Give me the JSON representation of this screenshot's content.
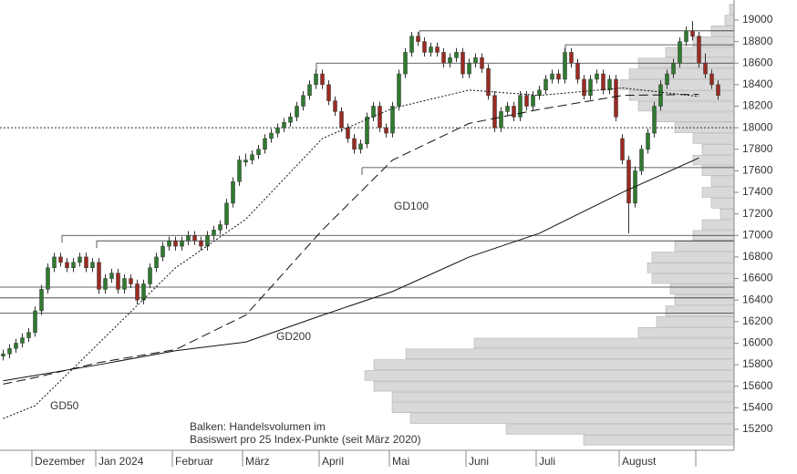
{
  "chart_data": {
    "type": "candlestick",
    "up_color": "#2f7a2f",
    "down_color": "#9b2a22",
    "ylim": [
      15005,
      19186
    ],
    "yticks": [
      15200,
      15400,
      15600,
      15800,
      16000,
      16200,
      16400,
      16600,
      16800,
      17000,
      17200,
      17400,
      17600,
      17800,
      18000,
      18200,
      18400,
      18600,
      18800,
      19000
    ],
    "months": [
      {
        "label": null,
        "gd50": 15300,
        "gd100": 15620,
        "gd200": 15650,
        "candles": [
          [
            15880,
            15940,
            15840,
            15900
          ],
          [
            15900,
            15990,
            15860,
            15950
          ],
          [
            15950,
            16040,
            15910,
            16000
          ],
          [
            16000,
            16090,
            15960,
            16050
          ],
          [
            16050,
            16140,
            16010,
            16100
          ]
        ]
      },
      {
        "label": "Dezember",
        "gd50": 15420,
        "gd100": 15680,
        "gd200": 15700,
        "candles": [
          [
            16100,
            16340,
            16060,
            16300
          ],
          [
            16300,
            16540,
            16260,
            16500
          ],
          [
            16500,
            16740,
            16460,
            16700
          ],
          [
            16700,
            16840,
            16660,
            16800
          ],
          [
            16800,
            16840,
            16710,
            16750
          ],
          [
            16750,
            16790,
            16660,
            16700
          ],
          [
            16700,
            16790,
            16660,
            16750
          ],
          [
            16750,
            16840,
            16710,
            16800
          ],
          [
            16800,
            16840,
            16660,
            16700
          ],
          [
            16700,
            16790,
            16660,
            16750
          ]
        ]
      },
      {
        "label": "Jan 2024",
        "gd50": 16000,
        "gd100": 15820,
        "gd200": 15800,
        "candles": [
          [
            16750,
            16790,
            16460,
            16500
          ],
          [
            16500,
            16640,
            16460,
            16600
          ],
          [
            16600,
            16690,
            16560,
            16650
          ],
          [
            16650,
            16690,
            16460,
            16500
          ],
          [
            16500,
            16640,
            16460,
            16600
          ],
          [
            16600,
            16640,
            16510,
            16550
          ],
          [
            16550,
            16590,
            16360,
            16400
          ],
          [
            16400,
            16590,
            16360,
            16550
          ],
          [
            16550,
            16740,
            16510,
            16700
          ],
          [
            16700,
            16840,
            16660,
            16800
          ],
          [
            16800,
            16940,
            16760,
            16900
          ],
          [
            16900,
            16990,
            16860,
            16950
          ]
        ]
      },
      {
        "label": "Februar",
        "gd50": 16700,
        "gd100": 15940,
        "gd200": 15930,
        "candles": [
          [
            16950,
            16990,
            16860,
            16900
          ],
          [
            16900,
            16990,
            16860,
            16950
          ],
          [
            16950,
            17040,
            16910,
            17000
          ],
          [
            17000,
            17040,
            16910,
            16950
          ],
          [
            16950,
            16990,
            16860,
            16900
          ],
          [
            16900,
            17040,
            16860,
            17000
          ],
          [
            17000,
            17090,
            16960,
            17050
          ],
          [
            17050,
            17140,
            17010,
            17100
          ],
          [
            17100,
            17340,
            17060,
            17300
          ],
          [
            17300,
            17540,
            17260,
            17500
          ],
          [
            17500,
            17740,
            17460,
            17700
          ]
        ]
      },
      {
        "label": "März",
        "gd50": 17150,
        "gd100": 16260,
        "gd200": 16010,
        "candles": [
          [
            17680,
            17760,
            17640,
            17700
          ],
          [
            17700,
            17790,
            17660,
            17750
          ],
          [
            17750,
            17840,
            17710,
            17800
          ],
          [
            17800,
            17940,
            17760,
            17900
          ],
          [
            17900,
            17990,
            17860,
            17950
          ],
          [
            17950,
            18040,
            17910,
            18000
          ],
          [
            18000,
            18090,
            17960,
            18050
          ],
          [
            18050,
            18140,
            18010,
            18100
          ],
          [
            18100,
            18240,
            18060,
            18200
          ],
          [
            18200,
            18340,
            18160,
            18300
          ],
          [
            18300,
            18440,
            18260,
            18400
          ],
          [
            18400,
            18540,
            18360,
            18500
          ]
        ]
      },
      {
        "label": "April",
        "gd50": 17900,
        "gd100": 17050,
        "gd200": 16260,
        "candles": [
          [
            18500,
            18540,
            18360,
            18400
          ],
          [
            18400,
            18440,
            18210,
            18250
          ],
          [
            18250,
            18290,
            18110,
            18150
          ],
          [
            18150,
            18190,
            17960,
            18000
          ],
          [
            18000,
            18040,
            17860,
            17900
          ],
          [
            17900,
            17940,
            17760,
            17800
          ],
          [
            17800,
            17890,
            17760,
            17850
          ],
          [
            17850,
            18140,
            17810,
            18100
          ],
          [
            18100,
            18240,
            18060,
            18200
          ],
          [
            18200,
            18240,
            17960,
            18000
          ],
          [
            18000,
            18040,
            17910,
            17950
          ]
        ]
      },
      {
        "label": "Mai",
        "gd50": 18180,
        "gd100": 17700,
        "gd200": 16480,
        "candles": [
          [
            17950,
            18240,
            17910,
            18200
          ],
          [
            18200,
            18540,
            18160,
            18500
          ],
          [
            18500,
            18740,
            18460,
            18700
          ],
          [
            18700,
            18890,
            18660,
            18850
          ],
          [
            18850,
            18890,
            18760,
            18800
          ],
          [
            18800,
            18840,
            18660,
            18700
          ],
          [
            18700,
            18790,
            18660,
            18750
          ],
          [
            18750,
            18790,
            18660,
            18700
          ],
          [
            18700,
            18740,
            18560,
            18600
          ],
          [
            18600,
            18690,
            18560,
            18650
          ],
          [
            18650,
            18740,
            18610,
            18700
          ],
          [
            18700,
            18740,
            18460,
            18500
          ]
        ]
      },
      {
        "label": "Juni",
        "gd50": 18350,
        "gd100": 18040,
        "gd200": 16800,
        "candles": [
          [
            18500,
            18640,
            18460,
            18600
          ],
          [
            18600,
            18690,
            18560,
            18650
          ],
          [
            18650,
            18690,
            18510,
            18550
          ],
          [
            18550,
            18590,
            18260,
            18300
          ],
          [
            18300,
            18340,
            17960,
            18000
          ],
          [
            18000,
            18190,
            17960,
            18150
          ],
          [
            18150,
            18240,
            18110,
            18200
          ],
          [
            18200,
            18240,
            18060,
            18100
          ],
          [
            18100,
            18340,
            18060,
            18300
          ],
          [
            18300,
            18340,
            18160,
            18200
          ],
          [
            18200,
            18340,
            18160,
            18300
          ]
        ]
      },
      {
        "label": "Juli",
        "gd50": 18300,
        "gd100": 18170,
        "gd200": 17020,
        "candles": [
          [
            18300,
            18390,
            18260,
            18350
          ],
          [
            18350,
            18490,
            18310,
            18450
          ],
          [
            18450,
            18540,
            18410,
            18500
          ],
          [
            18500,
            18540,
            18410,
            18450
          ],
          [
            18450,
            18740,
            18410,
            18700
          ],
          [
            18700,
            18740,
            18560,
            18600
          ],
          [
            18600,
            18640,
            18410,
            18450
          ],
          [
            18450,
            18490,
            18260,
            18300
          ],
          [
            18300,
            18490,
            18260,
            18450
          ],
          [
            18450,
            18540,
            18410,
            18500
          ],
          [
            18500,
            18540,
            18310,
            18350
          ],
          [
            18350,
            18490,
            18310,
            18450
          ],
          [
            18450,
            18490,
            18060,
            18100
          ]
        ]
      },
      {
        "label": "August",
        "gd50": 18370,
        "gd100": 18300,
        "gd200": 17400,
        "candles": [
          [
            17900,
            17940,
            17660,
            17700
          ],
          [
            17700,
            17740,
            17020,
            17300
          ],
          [
            17300,
            17640,
            17260,
            17600
          ],
          [
            17600,
            17840,
            17560,
            17800
          ],
          [
            17800,
            17990,
            17760,
            17950
          ],
          [
            17950,
            18240,
            17910,
            18200
          ],
          [
            18200,
            18440,
            18160,
            18400
          ],
          [
            18400,
            18540,
            18360,
            18500
          ],
          [
            18500,
            18640,
            18460,
            18600
          ],
          [
            18600,
            18840,
            18560,
            18800
          ],
          [
            18800,
            18940,
            18760,
            18900
          ],
          [
            18900,
            18990,
            18810,
            18850
          ]
        ]
      },
      {
        "label": null,
        "gd50": 18290,
        "gd100": 18310,
        "gd200": 17720,
        "candles": [
          [
            18850,
            18890,
            18560,
            18600
          ],
          [
            18600,
            18690,
            18460,
            18500
          ],
          [
            18500,
            18540,
            18360,
            18400
          ],
          [
            18400,
            18440,
            18260,
            18300
          ]
        ]
      }
    ],
    "moving_averages": [
      {
        "name": "GD50",
        "key": "gd50",
        "style": "dotted"
      },
      {
        "name": "GD100",
        "key": "gd100",
        "style": "dashed"
      },
      {
        "name": "GD200",
        "key": "gd200",
        "style": "solid"
      }
    ],
    "levels": [
      18900,
      18770,
      18600,
      17630,
      17000,
      16950,
      16520,
      16420,
      16280
    ],
    "dotted_level": 18000,
    "volume_profile": {
      "levels": [
        15100,
        15200,
        15300,
        15400,
        15500,
        15600,
        15700,
        15800,
        15900,
        16000,
        16100,
        16200,
        16300,
        16400,
        16500,
        16600,
        16700,
        16800,
        16900,
        17000,
        17100,
        17200,
        17300,
        17400,
        17500,
        17600,
        17700,
        17800,
        17900,
        18000,
        18100,
        18200,
        18300,
        18400,
        18500,
        18600,
        18700,
        18800,
        18900,
        19000,
        19100
      ],
      "values": [
        165,
        250,
        355,
        375,
        375,
        395,
        405,
        395,
        360,
        285,
        105,
        85,
        75,
        65,
        70,
        90,
        95,
        90,
        65,
        45,
        35,
        15,
        25,
        35,
        25,
        35,
        45,
        35,
        45,
        65,
        85,
        105,
        115,
        125,
        115,
        105,
        75,
        45,
        25,
        10,
        5
      ]
    },
    "note": [
      "Balken: Handelsvolumen im",
      "Basiswert pro 25 Index-Punkte (seit März 2020)"
    ]
  }
}
